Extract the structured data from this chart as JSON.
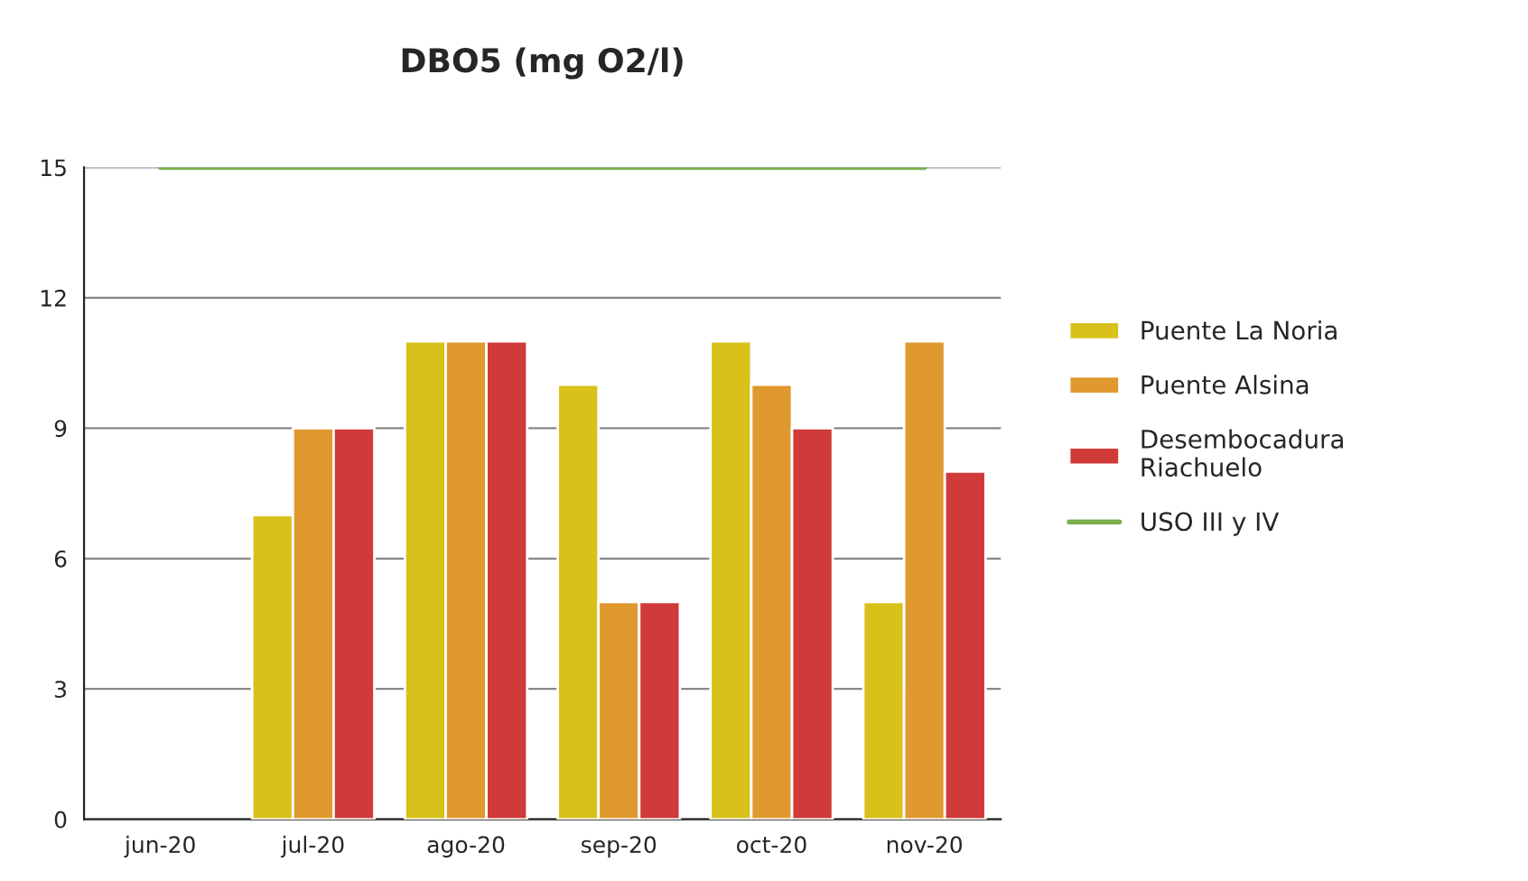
{
  "chart_data": {
    "type": "bar",
    "title": "DBO5 (mg O2/l)",
    "categories": [
      "jun-20",
      "jul-20",
      "ago-20",
      "sep-20",
      "oct-20",
      "nov-20"
    ],
    "series": [
      {
        "name": "Puente La Noria",
        "color": "#d8c11a",
        "values": [
          null,
          7,
          11,
          10,
          11,
          5
        ]
      },
      {
        "name": "Puente Alsina",
        "color": "#e0992e",
        "values": [
          null,
          9,
          11,
          5,
          10,
          11
        ]
      },
      {
        "name": "Desembocadura\nRiachuelo",
        "color": "#d03a38",
        "values": [
          null,
          9,
          11,
          5,
          9,
          8
        ]
      },
      {
        "name": "USO III y IV",
        "color": "#79b04a",
        "type": "line",
        "values": [
          15,
          15,
          15,
          15,
          15,
          15
        ]
      }
    ],
    "ylim": [
      0,
      15
    ],
    "yticks": [
      0,
      3,
      6,
      9,
      12,
      15
    ],
    "grid": "y",
    "legend": "right"
  }
}
